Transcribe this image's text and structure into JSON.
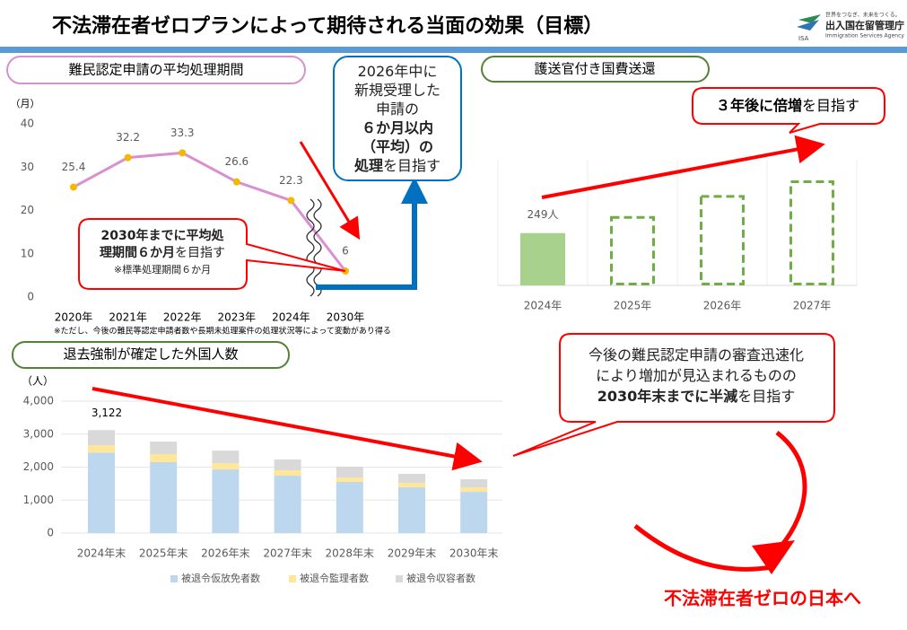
{
  "header": {
    "title": "不法滞在者ゼロプランによって期待される当面の効果（目標）"
  },
  "logo": {
    "mark": "ISA",
    "tagline": "世界をつなぎ、未来をつくる。",
    "name": "出入国在留管理庁",
    "english": "Immigration Services Agency"
  },
  "chart_data": [
    {
      "type": "line",
      "title": "難民認定申請の平均処理期間",
      "y_label": "（月）",
      "categories": [
        "2020年",
        "2021年",
        "2022年",
        "2023年",
        "2024年",
        "2030年"
      ],
      "values": [
        25.4,
        32.2,
        33.3,
        26.6,
        22.3,
        6
      ],
      "color": "#d98fd0",
      "marker_color": "#f5b800",
      "ylim": [
        0,
        40
      ],
      "yticks": [
        0,
        10,
        20,
        30,
        40
      ],
      "note": "※ただし、今後の難民等認定申請者数や長期未処理案件の処理状況等によって変動があり得る"
    },
    {
      "type": "bar",
      "title": "護送官付き国費送還",
      "categories": [
        "2024年",
        "2025年",
        "2026年",
        "2027年"
      ],
      "values": [
        249,
        330,
        430,
        500
      ],
      "value_labels": [
        "249人",
        null,
        null,
        null
      ],
      "styles": [
        "solid",
        "dashed",
        "dashed",
        "dashed"
      ],
      "color": "#a9d18e",
      "outline_color": "#70ad47"
    },
    {
      "type": "bar",
      "stacked": true,
      "title": "退去強制が確定した外国人数",
      "y_label": "（人）",
      "categories": [
        "2024年末",
        "2025年末",
        "2026年末",
        "2027年末",
        "2028年末",
        "2029年末",
        "2030年末"
      ],
      "series": [
        {
          "name": "被退令仮放免者数",
          "color": "#bdd7ee",
          "values": [
            2440,
            2150,
            1930,
            1740,
            1550,
            1390,
            1250
          ]
        },
        {
          "name": "被退令監理者数",
          "color": "#ffe699",
          "values": [
            220,
            245,
            190,
            165,
            135,
            135,
            135
          ]
        },
        {
          "name": "被退令収容者数",
          "color": "#d9d9d9",
          "values": [
            462,
            380,
            380,
            325,
            330,
            270,
            245
          ]
        }
      ],
      "ylim": [
        0,
        4000
      ],
      "yticks": [
        0,
        {
          "value": 1000,
          "label": "1,000"
        },
        {
          "value": 2000,
          "label": "2,000"
        },
        {
          "value": 3000,
          "label": "3,000"
        },
        {
          "value": 4000,
          "label": "4,000"
        }
      ],
      "annotation": {
        "value": 3122,
        "label": "3,122"
      }
    }
  ],
  "callouts": [
    {
      "lines": [
        [
          {
            "text": "2026年中に"
          }
        ],
        [
          {
            "text": "新規受理した"
          }
        ],
        [
          {
            "text": "申請の"
          }
        ],
        [
          {
            "text": "６か月以内",
            "bold": true
          }
        ],
        [
          {
            "text": "（平均）の",
            "bold": true
          }
        ],
        [
          {
            "text": "処理",
            "bold": true
          },
          {
            "text": "を目指す"
          }
        ]
      ]
    },
    {
      "lines": [
        [
          {
            "text": "2030年までに平均処",
            "bold": true
          }
        ],
        [
          {
            "text": "理期間６か月",
            "bold": true
          },
          {
            "text": "を目指す"
          }
        ],
        [
          {
            "text": "※標準処理期間６か月",
            "small": true
          }
        ]
      ]
    },
    {
      "lines": [
        [
          {
            "text": "３年後に倍増",
            "bold": true
          },
          {
            "text": "を目指す"
          }
        ]
      ]
    },
    {
      "lines": [
        [
          {
            "text": "今後の難民認定申請の審査迅速化"
          }
        ],
        [
          {
            "text": "により増加が見込まれるものの"
          }
        ],
        [
          {
            "text": "2030年末までに半減",
            "bold": true
          },
          {
            "text": "を目指す"
          }
        ]
      ]
    }
  ],
  "slogan": "不法滞在者ゼロの日本へ"
}
